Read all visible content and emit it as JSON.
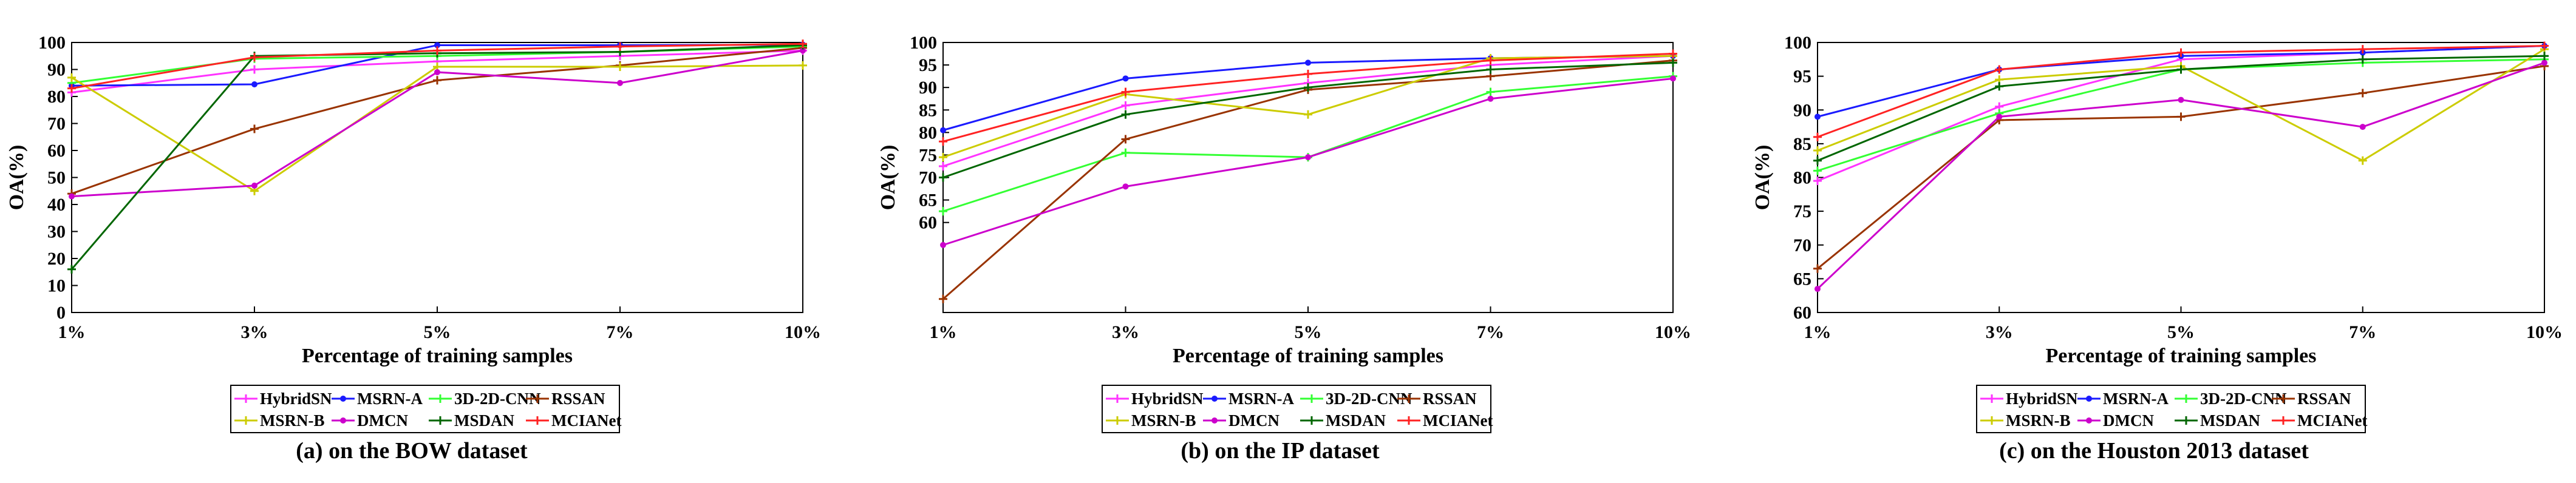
{
  "figure": {
    "legend_order": [
      0,
      1,
      2,
      3,
      4,
      5,
      6,
      7
    ]
  },
  "series_styles": [
    {
      "name": "HybridSN",
      "color": "#ff33ff",
      "marker": "plus"
    },
    {
      "name": "MSRN-A",
      "color": "#1a1aff",
      "marker": "dot"
    },
    {
      "name": "3D-2D-CNN",
      "color": "#33ff33",
      "marker": "plus"
    },
    {
      "name": "RSSAN",
      "color": "#993300",
      "marker": "plus"
    },
    {
      "name": "MSRN-B",
      "color": "#cccc00",
      "marker": "plus"
    },
    {
      "name": "DMCN",
      "color": "#cc00cc",
      "marker": "dot"
    },
    {
      "name": "MSDAN",
      "color": "#006600",
      "marker": "plus"
    },
    {
      "name": "MCIANet",
      "color": "#ff2222",
      "marker": "plus"
    }
  ],
  "chart_data": [
    {
      "type": "line",
      "caption": "(a) on the BOW dataset",
      "xlabel": "Percentage of training samples",
      "ylabel": "OA(%)",
      "categories": [
        "1%",
        "3%",
        "5%",
        "7%",
        "10%"
      ],
      "ylim": [
        0,
        100
      ],
      "yticks": [
        0,
        10,
        20,
        30,
        40,
        50,
        60,
        70,
        80,
        90,
        100
      ],
      "series": [
        {
          "name": "HybridSN",
          "values": [
            81.5,
            90.0,
            93.0,
            95.0,
            97.0
          ]
        },
        {
          "name": "MSRN-A",
          "values": [
            84.0,
            84.5,
            99.0,
            99.0,
            99.2
          ]
        },
        {
          "name": "3D-2D-CNN",
          "values": [
            85.0,
            94.0,
            95.0,
            96.5,
            98.5
          ]
        },
        {
          "name": "RSSAN",
          "values": [
            44.0,
            68.0,
            86.0,
            91.5,
            98.0
          ]
        },
        {
          "name": "MSRN-B",
          "values": [
            87.0,
            45.0,
            91.0,
            91.0,
            91.5
          ]
        },
        {
          "name": "DMCN",
          "values": [
            43.0,
            47.0,
            89.0,
            85.0,
            97.0
          ]
        },
        {
          "name": "MSDAN",
          "values": [
            16.0,
            95.0,
            96.0,
            96.5,
            99.0
          ]
        },
        {
          "name": "MCIANet",
          "values": [
            83.0,
            94.5,
            97.0,
            98.5,
            99.5
          ]
        }
      ]
    },
    {
      "type": "line",
      "caption": "(b) on the IP dataset",
      "xlabel": "Percentage of training samples",
      "ylabel": "OA(%)",
      "categories": [
        "1%",
        "3%",
        "5%",
        "7%",
        "10%"
      ],
      "ylim": [
        40,
        100
      ],
      "yticks": [
        60,
        65,
        70,
        75,
        80,
        85,
        90,
        95,
        100
      ],
      "series": [
        {
          "name": "HybridSN",
          "values": [
            72.5,
            86.0,
            91.0,
            95.0,
            97.0
          ]
        },
        {
          "name": "MSRN-A",
          "values": [
            80.5,
            92.0,
            95.5,
            96.5,
            97.0
          ]
        },
        {
          "name": "3D-2D-CNN",
          "values": [
            62.5,
            75.5,
            74.5,
            89.0,
            92.5
          ]
        },
        {
          "name": "RSSAN",
          "values": [
            43.0,
            78.5,
            89.5,
            92.5,
            96.0
          ]
        },
        {
          "name": "MSRN-B",
          "values": [
            74.5,
            88.5,
            84.0,
            96.5,
            97.0
          ]
        },
        {
          "name": "DMCN",
          "values": [
            55.0,
            68.0,
            74.5,
            87.5,
            92.0
          ]
        },
        {
          "name": "MSDAN",
          "values": [
            70.0,
            84.0,
            90.0,
            94.0,
            95.5
          ]
        },
        {
          "name": "MCIANet",
          "values": [
            78.0,
            89.0,
            93.0,
            96.0,
            97.5
          ]
        }
      ]
    },
    {
      "type": "line",
      "caption": "(c) on the Houston 2013 dataset",
      "xlabel": "Percentage of training samples",
      "ylabel": "OA(%)",
      "categories": [
        "1%",
        "3%",
        "5%",
        "7%",
        "10%"
      ],
      "ylim": [
        60,
        100
      ],
      "yticks": [
        60,
        65,
        70,
        75,
        80,
        85,
        90,
        95,
        100
      ],
      "series": [
        {
          "name": "HybridSN",
          "values": [
            79.5,
            90.5,
            97.5,
            98.5,
            99.5
          ]
        },
        {
          "name": "MSRN-A",
          "values": [
            89.0,
            96.0,
            98.0,
            98.5,
            99.5
          ]
        },
        {
          "name": "3D-2D-CNN",
          "values": [
            81.0,
            89.5,
            96.0,
            97.0,
            97.5
          ]
        },
        {
          "name": "RSSAN",
          "values": [
            66.5,
            88.5,
            89.0,
            92.5,
            96.5
          ]
        },
        {
          "name": "MSRN-B",
          "values": [
            84.0,
            94.5,
            96.5,
            82.5,
            99.0
          ]
        },
        {
          "name": "DMCN",
          "values": [
            63.5,
            89.0,
            91.5,
            87.5,
            97.0
          ]
        },
        {
          "name": "MSDAN",
          "values": [
            82.5,
            93.5,
            96.0,
            97.5,
            98.0
          ]
        },
        {
          "name": "MCIANet",
          "values": [
            86.0,
            96.0,
            98.5,
            99.0,
            99.5
          ]
        }
      ]
    }
  ]
}
